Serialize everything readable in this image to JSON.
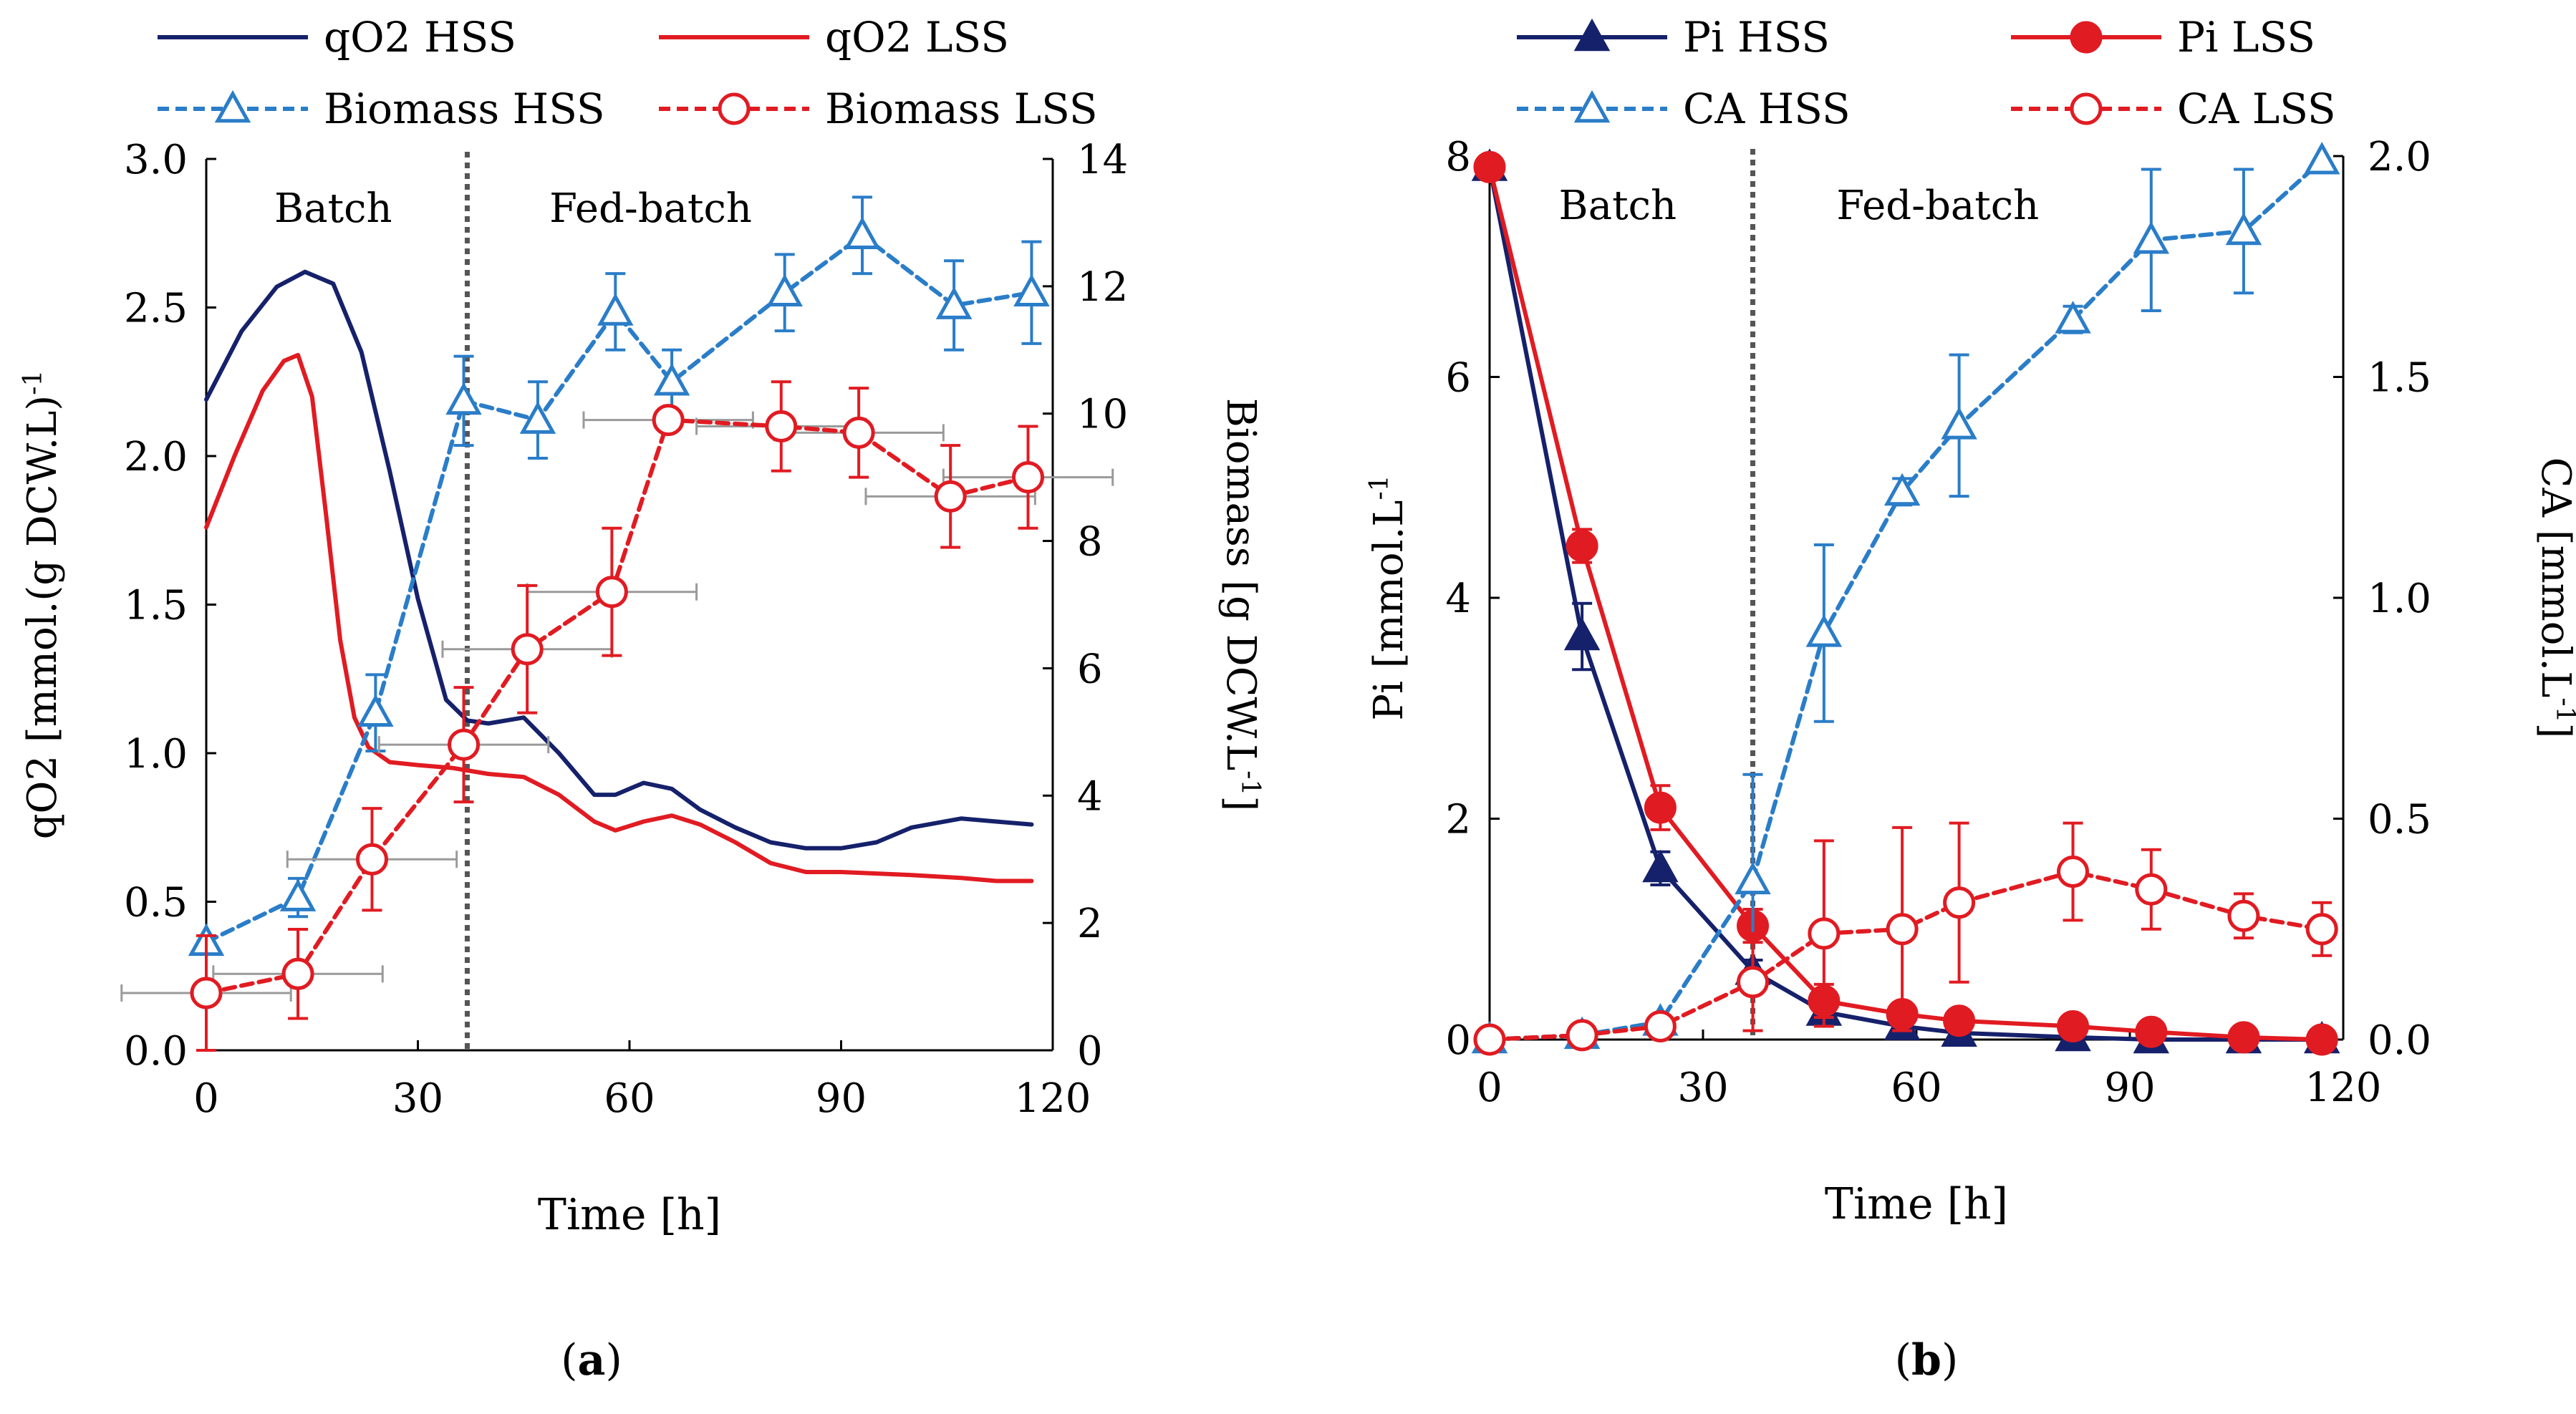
{
  "colors": {
    "navy": "#16216b",
    "red": "#e11b22",
    "blue": "#2a7dc8",
    "gray": "#9a9a9a",
    "divider": "#555555"
  },
  "chart_data": [
    {
      "type": "line",
      "panel_label": "(a)",
      "panel_letter": "a",
      "xlabel": "Time [h]",
      "ylabel_left": "qO2 [mmol.(g DCW.L)-1]",
      "ylabel_left_main": "qO2 [mmol.(g DCW.L)",
      "ylabel_left_sup": "-1",
      "ylabel_right": "Biomass [g DCW.L-1]",
      "ylabel_right_main": "Biomass [g DCW.L",
      "ylabel_right_sup": "-1",
      "ylabel_right_close": "]",
      "xlim": [
        0,
        120
      ],
      "ylim_left": [
        0,
        3.0
      ],
      "ylim_right": [
        0,
        14
      ],
      "x_ticks": [
        "0",
        "30",
        "60",
        "90",
        "120"
      ],
      "y_left_ticks": [
        "0.0",
        "0.5",
        "1.0",
        "1.5",
        "2.0",
        "2.5",
        "3.0"
      ],
      "y_right_ticks": [
        "0",
        "2",
        "4",
        "6",
        "8",
        "10",
        "12",
        "14"
      ],
      "phase_divider_x": 37,
      "phase_labels": [
        "Batch",
        "Fed-batch"
      ],
      "series": [
        {
          "name": "qO2 HSS",
          "axis": "left",
          "color": "navy",
          "style": "solid",
          "marker": "none",
          "x": [
            0,
            5,
            10,
            14,
            18,
            22,
            26,
            30,
            34,
            37,
            40,
            45,
            50,
            55,
            58,
            62,
            66,
            70,
            75,
            80,
            85,
            90,
            95,
            100,
            107,
            112,
            117
          ],
          "values": [
            2.19,
            2.42,
            2.57,
            2.62,
            2.58,
            2.35,
            1.95,
            1.52,
            1.18,
            1.11,
            1.1,
            1.12,
            1.0,
            0.86,
            0.86,
            0.9,
            0.88,
            0.81,
            0.75,
            0.7,
            0.68,
            0.68,
            0.7,
            0.75,
            0.78,
            0.77,
            0.76
          ]
        },
        {
          "name": "qO2 LSS",
          "axis": "left",
          "color": "red",
          "style": "solid",
          "marker": "none",
          "x": [
            0,
            4,
            8,
            11,
            13,
            15,
            17,
            19,
            21,
            23,
            26,
            30,
            35,
            40,
            45,
            50,
            55,
            58,
            62,
            66,
            70,
            75,
            80,
            85,
            90,
            100,
            107,
            112,
            117
          ],
          "values": [
            1.76,
            2.0,
            2.22,
            2.32,
            2.34,
            2.2,
            1.8,
            1.38,
            1.12,
            1.02,
            0.97,
            0.96,
            0.95,
            0.93,
            0.92,
            0.86,
            0.77,
            0.74,
            0.77,
            0.79,
            0.76,
            0.7,
            0.63,
            0.6,
            0.6,
            0.59,
            0.58,
            0.57,
            0.57
          ]
        },
        {
          "name": "Biomass HSS",
          "axis": "right",
          "color": "blue",
          "style": "dashed",
          "marker": "open-triangle",
          "x": [
            0,
            13,
            24,
            36.5,
            47,
            58,
            66,
            82,
            93,
            106,
            117
          ],
          "values": [
            1.7,
            2.4,
            5.3,
            10.2,
            9.9,
            11.6,
            10.5,
            11.9,
            12.8,
            11.7,
            11.9
          ],
          "errors": [
            0.0,
            0.3,
            0.6,
            0.7,
            0.6,
            0.6,
            0.5,
            0.6,
            0.6,
            0.7,
            0.8
          ]
        },
        {
          "name": "Biomass LSS",
          "axis": "right",
          "color": "red",
          "style": "dashed",
          "marker": "open-circle",
          "x": [
            0,
            13,
            23.5,
            36.5,
            45.5,
            57.5,
            65.5,
            81.5,
            92.5,
            105.5,
            116.5
          ],
          "values": [
            0.9,
            1.2,
            3.0,
            4.8,
            6.3,
            7.2,
            9.9,
            9.8,
            9.7,
            8.7,
            9.0
          ],
          "errors": [
            0.9,
            0.7,
            0.8,
            0.9,
            1.0,
            1.0,
            0.0,
            0.7,
            0.7,
            0.8,
            0.8
          ],
          "x_errors": [
            12,
            12,
            12,
            12,
            12,
            12,
            12,
            12,
            12,
            12,
            12
          ]
        }
      ],
      "legend": [
        "qO2 HSS",
        "qO2 LSS",
        "Biomass HSS",
        "Biomass LSS"
      ]
    },
    {
      "type": "line",
      "panel_label": "(b)",
      "panel_letter": "b",
      "xlabel": "Time [h]",
      "ylabel_left": "Pi [mmol.L-1]",
      "ylabel_left_main": "Pi [mmol.L",
      "ylabel_left_sup": "-1",
      "ylabel_right": "CA [mmol.L-1]",
      "ylabel_right_main": "CA [mmol.L",
      "ylabel_right_sup": "-1",
      "ylabel_right_close": "]",
      "xlim": [
        0,
        120
      ],
      "ylim_left": [
        0,
        8
      ],
      "ylim_right": [
        0,
        2.0
      ],
      "x_ticks": [
        "0",
        "30",
        "60",
        "90",
        "120"
      ],
      "y_left_ticks": [
        "0",
        "2",
        "4",
        "6",
        "8"
      ],
      "y_right_ticks": [
        "0.0",
        "0.5",
        "1.0",
        "1.5",
        "2.0"
      ],
      "phase_divider_x": 37,
      "phase_labels": [
        "Batch",
        "Fed-batch"
      ],
      "series": [
        {
          "name": "Pi HSS",
          "axis": "left",
          "color": "navy",
          "style": "solid",
          "marker": "filled-triangle",
          "x": [
            0,
            13,
            24,
            37,
            47,
            58,
            66,
            82,
            93,
            106,
            117
          ],
          "values": [
            7.9,
            3.65,
            1.55,
            0.62,
            0.25,
            0.12,
            0.06,
            0.02,
            0.0,
            0.0,
            0.0
          ],
          "errors": [
            0.0,
            0.3,
            0.15,
            0.1,
            0.08,
            0.05,
            0.0,
            0.0,
            0.0,
            0.0,
            0.0
          ]
        },
        {
          "name": "Pi LSS",
          "axis": "left",
          "color": "red",
          "style": "solid",
          "marker": "filled-circle",
          "x": [
            0,
            13,
            24,
            37,
            47,
            58,
            66,
            82,
            93,
            106,
            117
          ],
          "values": [
            7.9,
            4.47,
            2.1,
            1.03,
            0.35,
            0.23,
            0.17,
            0.12,
            0.07,
            0.02,
            0.0
          ],
          "errors": [
            0.05,
            0.15,
            0.2,
            0.15,
            0.15,
            0.05,
            0.05,
            0.08,
            0.04,
            0.02,
            0.0
          ]
        },
        {
          "name": "CA HSS",
          "axis": "right",
          "color": "blue",
          "style": "dashed",
          "marker": "open-triangle",
          "x": [
            0,
            13,
            24,
            37,
            47,
            58,
            66,
            82,
            93,
            106,
            117
          ],
          "values": [
            0.0,
            0.01,
            0.04,
            0.36,
            0.92,
            1.24,
            1.39,
            1.63,
            1.81,
            1.83,
            1.99
          ],
          "errors": [
            0.0,
            0.0,
            0.0,
            0.24,
            0.2,
            0.03,
            0.16,
            0.03,
            0.16,
            0.14,
            0.0
          ]
        },
        {
          "name": "CA LSS",
          "axis": "right",
          "color": "red",
          "style": "dashed",
          "marker": "open-circle",
          "x": [
            0,
            13,
            24,
            37,
            47,
            58,
            66,
            82,
            93,
            106,
            117
          ],
          "values": [
            0.0,
            0.01,
            0.03,
            0.13,
            0.24,
            0.25,
            0.31,
            0.38,
            0.34,
            0.28,
            0.25
          ],
          "errors": [
            0.0,
            0.0,
            0.0,
            0.11,
            0.21,
            0.23,
            0.18,
            0.11,
            0.09,
            0.05,
            0.06
          ]
        }
      ],
      "legend": [
        "Pi HSS",
        "Pi LSS",
        "CA HSS",
        "CA LSS"
      ]
    }
  ]
}
